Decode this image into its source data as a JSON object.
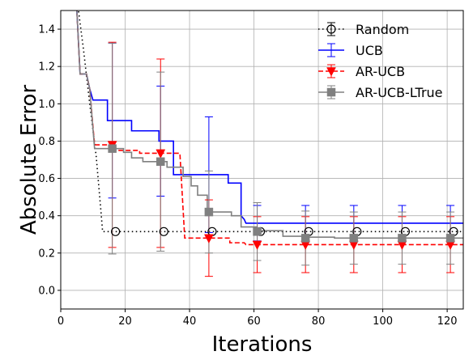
{
  "chart_data": {
    "type": "line",
    "title": "",
    "xlabel": "Iterations",
    "ylabel": "Absolute Error",
    "xlim": [
      0,
      125
    ],
    "ylim": [
      -0.1,
      1.5
    ],
    "xticks": [
      0,
      20,
      40,
      60,
      80,
      100,
      120
    ],
    "yticks": [
      0.0,
      0.2,
      0.4,
      0.6,
      0.8,
      1.0,
      1.2,
      1.4
    ],
    "xtick_labels": [
      "0",
      "20",
      "40",
      "60",
      "80",
      "100",
      "120"
    ],
    "ytick_labels": [
      "0.0",
      "0.2",
      "0.4",
      "0.6",
      "0.8",
      "1.0",
      "1.2",
      "1.4"
    ],
    "grid": true,
    "legend_position": "top-right",
    "series": [
      {
        "name": "Random",
        "color": "#000000",
        "linestyle": "dotted",
        "marker": "circle-open",
        "line": [
          [
            4,
            1.95
          ],
          [
            5.5,
            1.5
          ],
          [
            7,
            1.3
          ],
          [
            9,
            1.0
          ],
          [
            11,
            0.72
          ],
          [
            12.5,
            0.42
          ],
          [
            13,
            0.315
          ],
          [
            125,
            0.315
          ]
        ],
        "points": [
          {
            "x": 17,
            "y": 0.315,
            "err": 0.0
          },
          {
            "x": 32,
            "y": 0.315,
            "err": 0.0
          },
          {
            "x": 47,
            "y": 0.315,
            "err": 0.0
          },
          {
            "x": 62,
            "y": 0.315,
            "err": 0.0
          },
          {
            "x": 77,
            "y": 0.315,
            "err": 0.0
          },
          {
            "x": 92,
            "y": 0.315,
            "err": 0.0
          },
          {
            "x": 107,
            "y": 0.315,
            "err": 0.0
          },
          {
            "x": 122,
            "y": 0.315,
            "err": 0.0
          }
        ]
      },
      {
        "name": "UCB",
        "color": "#0000ff",
        "linestyle": "solid",
        "marker": "none",
        "line": [
          [
            4,
            1.95
          ],
          [
            5,
            1.5
          ],
          [
            6,
            1.16
          ],
          [
            8,
            1.16
          ],
          [
            9,
            1.08
          ],
          [
            10,
            1.02
          ],
          [
            14.5,
            1.02
          ],
          [
            14.5,
            0.91
          ],
          [
            22,
            0.91
          ],
          [
            22,
            0.855
          ],
          [
            30.5,
            0.855
          ],
          [
            30.5,
            0.8
          ],
          [
            35,
            0.8
          ],
          [
            35,
            0.62
          ],
          [
            52,
            0.62
          ],
          [
            52,
            0.575
          ],
          [
            56,
            0.575
          ],
          [
            56,
            0.4
          ],
          [
            57,
            0.38
          ],
          [
            57.5,
            0.36
          ],
          [
            125,
            0.36
          ]
        ],
        "points": [
          {
            "x": 16,
            "y": 0.91,
            "err": 0.415
          },
          {
            "x": 31,
            "y": 0.8,
            "err": 0.295
          },
          {
            "x": 46,
            "y": 0.62,
            "err": 0.31
          },
          {
            "x": 61,
            "y": 0.36,
            "err": 0.095
          },
          {
            "x": 76,
            "y": 0.36,
            "err": 0.095
          },
          {
            "x": 91,
            "y": 0.36,
            "err": 0.095
          },
          {
            "x": 106,
            "y": 0.36,
            "err": 0.095
          },
          {
            "x": 121,
            "y": 0.36,
            "err": 0.095
          }
        ]
      },
      {
        "name": "AR-UCB",
        "color": "#ff0000",
        "linestyle": "dashed",
        "marker": "triangle-down",
        "line": [
          [
            4,
            1.95
          ],
          [
            5,
            1.5
          ],
          [
            6,
            1.16
          ],
          [
            8,
            1.16
          ],
          [
            9,
            1.08
          ],
          [
            10.5,
            0.78
          ],
          [
            16,
            0.78
          ],
          [
            16,
            0.75
          ],
          [
            24.5,
            0.75
          ],
          [
            24.5,
            0.735
          ],
          [
            37,
            0.735
          ],
          [
            38.5,
            0.28
          ],
          [
            52.5,
            0.28
          ],
          [
            52.5,
            0.255
          ],
          [
            57,
            0.255
          ],
          [
            57.5,
            0.245
          ],
          [
            125,
            0.245
          ]
        ],
        "points": [
          {
            "x": 16,
            "y": 0.78,
            "err": 0.55
          },
          {
            "x": 31,
            "y": 0.735,
            "err": 0.505
          },
          {
            "x": 46,
            "y": 0.28,
            "err": 0.205
          },
          {
            "x": 61,
            "y": 0.245,
            "err": 0.15
          },
          {
            "x": 76,
            "y": 0.245,
            "err": 0.15
          },
          {
            "x": 91,
            "y": 0.245,
            "err": 0.15
          },
          {
            "x": 106,
            "y": 0.245,
            "err": 0.15
          },
          {
            "x": 121,
            "y": 0.245,
            "err": 0.15
          }
        ]
      },
      {
        "name": "AR-UCB-LTrue",
        "color": "#808080",
        "linestyle": "solid",
        "marker": "square",
        "line": [
          [
            4,
            1.95
          ],
          [
            5,
            1.5
          ],
          [
            6,
            1.16
          ],
          [
            8,
            1.16
          ],
          [
            9,
            1.08
          ],
          [
            10.5,
            0.76
          ],
          [
            19.5,
            0.76
          ],
          [
            19.5,
            0.74
          ],
          [
            22,
            0.74
          ],
          [
            22,
            0.71
          ],
          [
            25.5,
            0.71
          ],
          [
            25.5,
            0.69
          ],
          [
            33,
            0.69
          ],
          [
            33,
            0.66
          ],
          [
            38,
            0.66
          ],
          [
            38,
            0.61
          ],
          [
            40.5,
            0.61
          ],
          [
            40.5,
            0.56
          ],
          [
            42.5,
            0.56
          ],
          [
            42.5,
            0.51
          ],
          [
            45.5,
            0.51
          ],
          [
            45.5,
            0.42
          ],
          [
            53,
            0.42
          ],
          [
            53,
            0.4
          ],
          [
            56,
            0.4
          ],
          [
            56,
            0.34
          ],
          [
            61,
            0.34
          ],
          [
            61,
            0.32
          ],
          [
            69,
            0.32
          ],
          [
            69,
            0.29
          ],
          [
            75,
            0.29
          ],
          [
            75,
            0.285
          ],
          [
            85,
            0.285
          ],
          [
            85,
            0.28
          ],
          [
            125,
            0.28
          ]
        ],
        "points": [
          {
            "x": 16,
            "y": 0.76,
            "err": 0.565
          },
          {
            "x": 31,
            "y": 0.69,
            "err": 0.48
          },
          {
            "x": 46,
            "y": 0.42,
            "err": 0.22
          },
          {
            "x": 61,
            "y": 0.315,
            "err": 0.155
          },
          {
            "x": 76,
            "y": 0.28,
            "err": 0.145
          },
          {
            "x": 91,
            "y": 0.28,
            "err": 0.14
          },
          {
            "x": 106,
            "y": 0.28,
            "err": 0.14
          },
          {
            "x": 121,
            "y": 0.28,
            "err": 0.14
          }
        ]
      }
    ]
  }
}
